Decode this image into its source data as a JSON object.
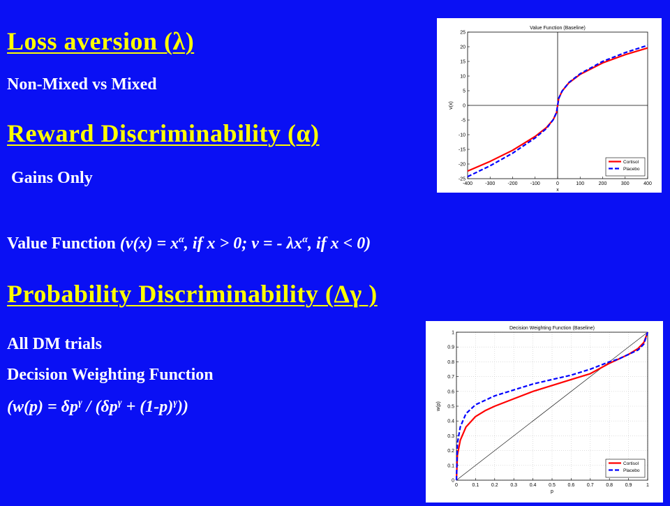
{
  "slide": {
    "heading1": "Loss aversion (λ)",
    "sub1": "Non-Mixed vs Mixed",
    "heading2": "Reward Discriminability (α)",
    "sub2": " Gains Only",
    "vf_label": "Value Function",
    "vf_formula_a": "(v(x) = x",
    "vf_formula_b": ", if x > 0; v = - λx",
    "vf_formula_c": ", if x < 0)",
    "alpha_sup": "α",
    "heading3": "Probability Discriminability (Δγ )",
    "sub3": "All DM trials",
    "dwf_label": "Decision Weighting Function",
    "dwf_formula_a": "(w(p) = δp",
    "dwf_formula_b": " / (δp",
    "dwf_formula_c": " + (1-p)",
    "dwf_formula_d": "))",
    "gamma_sup": "γ"
  },
  "colors": {
    "background": "#0a10f4",
    "heading": "#ffff00",
    "text": "#ffffff",
    "cortisol": "#ff0000",
    "placebo": "#0000ff"
  },
  "chart_data": [
    {
      "type": "line",
      "title": "Value Function (Baseline)",
      "xlabel": "x",
      "ylabel": "v(x)",
      "xlim": [
        -400,
        400
      ],
      "ylim": [
        -25,
        25
      ],
      "xticks": [
        -400,
        -300,
        -200,
        -100,
        0,
        100,
        200,
        300,
        400
      ],
      "yticks": [
        -25,
        -20,
        -15,
        -10,
        -5,
        0,
        5,
        10,
        15,
        20,
        25
      ],
      "legend": "bottom-right",
      "series": [
        {
          "name": "Cortisol",
          "style": "solid",
          "x": [
            -400,
            -300,
            -200,
            -100,
            -50,
            -20,
            -5,
            0,
            5,
            20,
            50,
            100,
            200,
            300,
            400
          ],
          "y": [
            -22.4,
            -19.1,
            -15.3,
            -10.6,
            -7.6,
            -4.9,
            -2.5,
            0,
            2.4,
            4.9,
            7.7,
            10.6,
            14.5,
            17.3,
            19.6
          ]
        },
        {
          "name": "Placebo",
          "style": "dashed",
          "x": [
            -400,
            -300,
            -200,
            -100,
            -50,
            -20,
            -5,
            0,
            5,
            20,
            50,
            100,
            200,
            300,
            400
          ],
          "y": [
            -24.3,
            -20.6,
            -16.3,
            -11.1,
            -7.9,
            -4.9,
            -2.4,
            0,
            2.4,
            4.9,
            7.8,
            10.8,
            15.0,
            18.0,
            20.5
          ]
        }
      ]
    },
    {
      "type": "line",
      "title": "Decision Weighting Function (Baseline)",
      "xlabel": "p",
      "ylabel": "w(p)",
      "xlim": [
        0,
        1
      ],
      "ylim": [
        0,
        1
      ],
      "xticks": [
        0,
        0.1,
        0.2,
        0.3,
        0.4,
        0.5,
        0.6,
        0.7,
        0.8,
        0.9,
        1
      ],
      "yticks": [
        0,
        0.1,
        0.2,
        0.3,
        0.4,
        0.5,
        0.6,
        0.7,
        0.8,
        0.9,
        1
      ],
      "legend": "bottom-right",
      "series": [
        {
          "name": "Cortisol",
          "style": "solid",
          "x": [
            0,
            0.005,
            0.02,
            0.05,
            0.1,
            0.15,
            0.2,
            0.3,
            0.4,
            0.5,
            0.6,
            0.7,
            0.8,
            0.85,
            0.9,
            0.95,
            0.98,
            1
          ],
          "y": [
            0,
            0.17,
            0.27,
            0.36,
            0.43,
            0.47,
            0.5,
            0.55,
            0.6,
            0.64,
            0.68,
            0.72,
            0.79,
            0.82,
            0.85,
            0.89,
            0.93,
            1
          ]
        },
        {
          "name": "Placebo",
          "style": "dashed",
          "x": [
            0,
            0.005,
            0.02,
            0.05,
            0.1,
            0.15,
            0.2,
            0.3,
            0.4,
            0.5,
            0.6,
            0.7,
            0.8,
            0.85,
            0.9,
            0.95,
            0.98,
            1
          ],
          "y": [
            0,
            0.25,
            0.36,
            0.45,
            0.51,
            0.54,
            0.57,
            0.61,
            0.65,
            0.68,
            0.71,
            0.75,
            0.8,
            0.82,
            0.85,
            0.88,
            0.92,
            1
          ]
        },
        {
          "name": "",
          "style": "thin-black",
          "x": [
            0,
            1
          ],
          "y": [
            0,
            1
          ]
        }
      ]
    }
  ]
}
